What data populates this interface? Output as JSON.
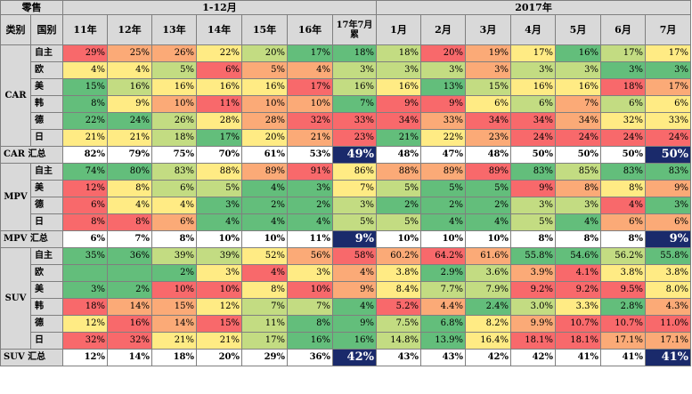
{
  "header": {
    "retail": "零售",
    "range_label": "1-12月",
    "year_label": "2017年",
    "col_category": "类别",
    "col_country": "国别",
    "cols_left": [
      "11年",
      "12年",
      "13年",
      "14年",
      "15年",
      "16年",
      "17年7月累"
    ],
    "cols_right": [
      "1月",
      "2月",
      "3月",
      "4月",
      "5月",
      "6月",
      "7月"
    ]
  },
  "colors": {
    "red": "#f8696b",
    "orange": "#fbaa77",
    "yellow": "#ffeb84",
    "lightgreen": "#c3dc82",
    "green": "#63be7b",
    "header_gray": "#d9d9d9",
    "highlight": "#1a2a6b"
  },
  "sections": [
    {
      "category": "CAR",
      "rows": [
        {
          "brand": "自主",
          "values": [
            "29%",
            "25%",
            "26%",
            "22%",
            "20%",
            "17%",
            "18%",
            "18%",
            "20%",
            "19%",
            "17%",
            "16%",
            "17%",
            "17%"
          ],
          "tones": [
            "r",
            "o",
            "o",
            "y",
            "lg",
            "g",
            "g",
            "lg",
            "r",
            "o",
            "y",
            "g",
            "lg",
            "y"
          ]
        },
        {
          "brand": "欧",
          "values": [
            "4%",
            "4%",
            "5%",
            "6%",
            "5%",
            "4%",
            "3%",
            "3%",
            "3%",
            "3%",
            "3%",
            "3%",
            "3%",
            "3%"
          ],
          "tones": [
            "y",
            "y",
            "lg",
            "r",
            "o",
            "o",
            "lg",
            "lg",
            "lg",
            "o",
            "lg",
            "lg",
            "g",
            "g"
          ]
        },
        {
          "brand": "美",
          "values": [
            "15%",
            "16%",
            "16%",
            "16%",
            "16%",
            "17%",
            "16%",
            "16%",
            "13%",
            "15%",
            "16%",
            "16%",
            "18%",
            "17%"
          ],
          "tones": [
            "g",
            "lg",
            "y",
            "y",
            "y",
            "r",
            "lg",
            "y",
            "g",
            "lg",
            "y",
            "y",
            "r",
            "o"
          ]
        },
        {
          "brand": "韩",
          "values": [
            "8%",
            "9%",
            "10%",
            "11%",
            "10%",
            "10%",
            "7%",
            "9%",
            "9%",
            "6%",
            "6%",
            "7%",
            "6%",
            "6%"
          ],
          "tones": [
            "g",
            "y",
            "o",
            "r",
            "o",
            "o",
            "g",
            "r",
            "r",
            "y",
            "lg",
            "o",
            "lg",
            "y"
          ]
        },
        {
          "brand": "德",
          "values": [
            "22%",
            "24%",
            "26%",
            "28%",
            "28%",
            "32%",
            "33%",
            "34%",
            "33%",
            "34%",
            "34%",
            "34%",
            "32%",
            "33%"
          ],
          "tones": [
            "g",
            "g",
            "lg",
            "y",
            "o",
            "r",
            "r",
            "r",
            "o",
            "r",
            "r",
            "o",
            "y",
            "y"
          ]
        },
        {
          "brand": "日",
          "values": [
            "21%",
            "21%",
            "18%",
            "17%",
            "20%",
            "21%",
            "23%",
            "21%",
            "22%",
            "23%",
            "24%",
            "24%",
            "24%",
            "24%"
          ],
          "tones": [
            "y",
            "y",
            "lg",
            "g",
            "y",
            "o",
            "r",
            "g",
            "y",
            "o",
            "r",
            "r",
            "r",
            "r"
          ]
        }
      ],
      "total_label": "CAR 汇总",
      "totals": [
        "82%",
        "79%",
        "75%",
        "70%",
        "61%",
        "53%",
        "49%",
        "48%",
        "47%",
        "48%",
        "50%",
        "50%",
        "50%",
        "50%"
      ]
    },
    {
      "category": "MPV",
      "rows": [
        {
          "brand": "自主",
          "values": [
            "74%",
            "80%",
            "83%",
            "88%",
            "89%",
            "91%",
            "86%",
            "88%",
            "89%",
            "89%",
            "83%",
            "85%",
            "83%",
            "83%"
          ],
          "tones": [
            "g",
            "g",
            "lg",
            "y",
            "o",
            "r",
            "y",
            "o",
            "o",
            "r",
            "g",
            "lg",
            "g",
            "g"
          ]
        },
        {
          "brand": "美",
          "values": [
            "12%",
            "8%",
            "6%",
            "5%",
            "4%",
            "3%",
            "7%",
            "5%",
            "5%",
            "5%",
            "9%",
            "8%",
            "8%",
            "9%"
          ],
          "tones": [
            "r",
            "y",
            "lg",
            "lg",
            "g",
            "g",
            "y",
            "lg",
            "g",
            "g",
            "r",
            "o",
            "y",
            "o"
          ]
        },
        {
          "brand": "德",
          "values": [
            "6%",
            "4%",
            "4%",
            "3%",
            "2%",
            "2%",
            "3%",
            "2%",
            "2%",
            "2%",
            "3%",
            "3%",
            "4%",
            "3%"
          ],
          "tones": [
            "r",
            "y",
            "y",
            "g",
            "g",
            "g",
            "lg",
            "g",
            "g",
            "g",
            "lg",
            "lg",
            "r",
            "g"
          ]
        },
        {
          "brand": "日",
          "values": [
            "8%",
            "8%",
            "6%",
            "4%",
            "4%",
            "4%",
            "5%",
            "5%",
            "4%",
            "4%",
            "5%",
            "4%",
            "6%",
            "6%"
          ],
          "tones": [
            "r",
            "r",
            "o",
            "g",
            "g",
            "g",
            "lg",
            "lg",
            "g",
            "g",
            "lg",
            "g",
            "o",
            "o"
          ]
        }
      ],
      "total_label": "MPV 汇总",
      "totals": [
        "6%",
        "7%",
        "8%",
        "10%",
        "10%",
        "11%",
        "9%",
        "10%",
        "10%",
        "10%",
        "8%",
        "8%",
        "8%",
        "9%"
      ]
    },
    {
      "category": "SUV",
      "rows": [
        {
          "brand": "自主",
          "values": [
            "35%",
            "36%",
            "39%",
            "39%",
            "52%",
            "56%",
            "58%",
            "60.2%",
            "64.2%",
            "61.6%",
            "55.8%",
            "54.6%",
            "56.2%",
            "55.8%"
          ],
          "tones": [
            "g",
            "g",
            "lg",
            "lg",
            "y",
            "o",
            "r",
            "o",
            "r",
            "o",
            "g",
            "g",
            "lg",
            "g"
          ]
        },
        {
          "brand": "欧",
          "values": [
            "",
            "",
            "2%",
            "3%",
            "4%",
            "3%",
            "4%",
            "3.8%",
            "2.9%",
            "3.6%",
            "3.9%",
            "4.1%",
            "3.8%",
            "3.8%"
          ],
          "tones": [
            "g",
            "g",
            "g",
            "y",
            "r",
            "y",
            "o",
            "y",
            "g",
            "lg",
            "o",
            "r",
            "y",
            "y"
          ]
        },
        {
          "brand": "美",
          "values": [
            "3%",
            "2%",
            "10%",
            "10%",
            "8%",
            "10%",
            "9%",
            "8.4%",
            "7.7%",
            "7.9%",
            "9.2%",
            "9.2%",
            "9.5%",
            "8.0%"
          ],
          "tones": [
            "g",
            "g",
            "r",
            "r",
            "y",
            "r",
            "o",
            "y",
            "lg",
            "lg",
            "r",
            "r",
            "r",
            "y"
          ]
        },
        {
          "brand": "韩",
          "values": [
            "18%",
            "14%",
            "15%",
            "12%",
            "7%",
            "7%",
            "4%",
            "5.2%",
            "4.4%",
            "2.4%",
            "3.0%",
            "3.3%",
            "2.8%",
            "4.3%"
          ],
          "tones": [
            "r",
            "o",
            "o",
            "y",
            "lg",
            "lg",
            "g",
            "r",
            "o",
            "g",
            "lg",
            "y",
            "g",
            "o"
          ]
        },
        {
          "brand": "德",
          "values": [
            "12%",
            "16%",
            "14%",
            "15%",
            "11%",
            "8%",
            "9%",
            "7.5%",
            "6.8%",
            "8.2%",
            "9.9%",
            "10.7%",
            "10.7%",
            "11.0%"
          ],
          "tones": [
            "y",
            "r",
            "o",
            "r",
            "lg",
            "g",
            "g",
            "lg",
            "g",
            "y",
            "o",
            "r",
            "r",
            "r"
          ]
        },
        {
          "brand": "日",
          "values": [
            "32%",
            "32%",
            "21%",
            "21%",
            "17%",
            "16%",
            "16%",
            "14.8%",
            "13.9%",
            "16.4%",
            "18.1%",
            "18.1%",
            "17.1%",
            "17.1%"
          ],
          "tones": [
            "r",
            "r",
            "y",
            "y",
            "lg",
            "g",
            "g",
            "lg",
            "g",
            "y",
            "r",
            "r",
            "o",
            "o"
          ]
        }
      ],
      "total_label": "SUV 汇总",
      "totals": [
        "12%",
        "14%",
        "18%",
        "20%",
        "29%",
        "36%",
        "42%",
        "43%",
        "43%",
        "42%",
        "42%",
        "41%",
        "41%",
        "41%"
      ]
    }
  ]
}
